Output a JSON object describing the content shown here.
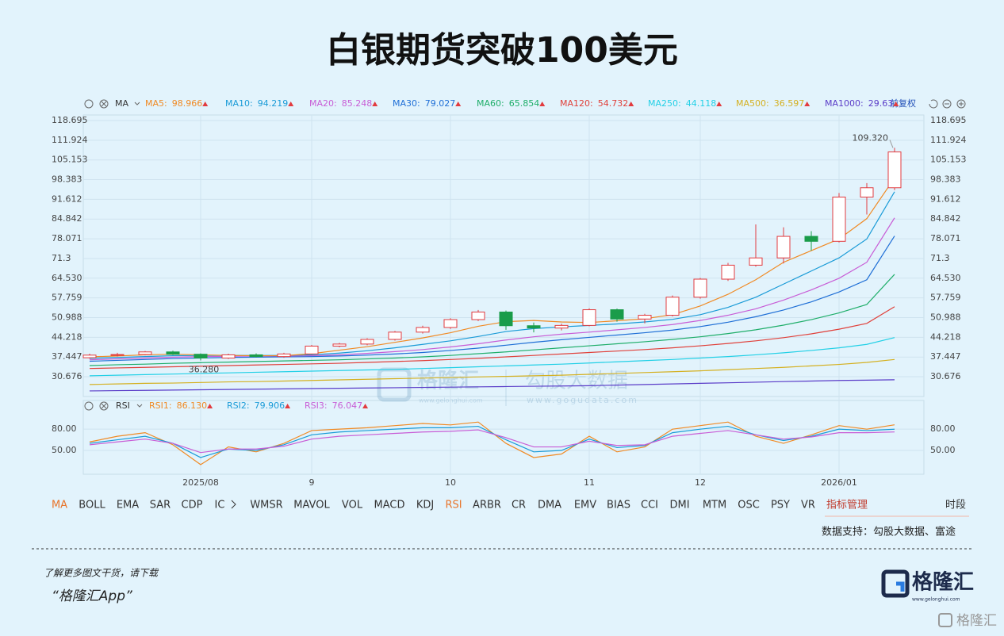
{
  "title": "白银期货突破100美元",
  "chart_data": [
    {
      "type": "candlestick",
      "indicator": "MA",
      "adjust": "前复权",
      "candles": [
        [
          37.2,
          38.6,
          36.9,
          38.1
        ],
        [
          38.1,
          38.9,
          37.6,
          38.3
        ],
        [
          38.3,
          39.5,
          38.0,
          39.2
        ],
        [
          39.2,
          39.6,
          38.1,
          38.4
        ],
        [
          38.4,
          38.7,
          36.28,
          37.1
        ],
        [
          37.1,
          38.6,
          36.8,
          38.2
        ],
        [
          38.2,
          38.7,
          37.3,
          37.6
        ],
        [
          37.6,
          38.9,
          37.2,
          38.5
        ],
        [
          38.5,
          41.6,
          38.3,
          41.2
        ],
        [
          41.2,
          42.3,
          40.8,
          41.9
        ],
        [
          41.9,
          43.9,
          41.5,
          43.5
        ],
        [
          43.5,
          46.4,
          43.1,
          46.0
        ],
        [
          46.0,
          48.2,
          45.5,
          47.6
        ],
        [
          47.6,
          50.8,
          47.1,
          50.3
        ],
        [
          50.3,
          53.6,
          49.8,
          52.9
        ],
        [
          52.9,
          53.4,
          46.8,
          48.2
        ],
        [
          48.2,
          49.3,
          45.9,
          47.4
        ],
        [
          47.4,
          48.9,
          46.6,
          48.3
        ],
        [
          48.3,
          54.2,
          48.0,
          53.7
        ],
        [
          53.7,
          54.1,
          49.6,
          50.5
        ],
        [
          50.5,
          52.3,
          49.0,
          51.8
        ],
        [
          51.8,
          58.6,
          51.4,
          58.0
        ],
        [
          58.0,
          64.6,
          57.5,
          64.2
        ],
        [
          64.2,
          69.8,
          63.6,
          69.0
        ],
        [
          69.0,
          83.0,
          68.5,
          71.5
        ],
        [
          71.5,
          82.0,
          69.6,
          78.9
        ],
        [
          78.9,
          80.7,
          74.0,
          77.2
        ],
        [
          77.2,
          93.8,
          76.8,
          92.4
        ],
        [
          92.4,
          97.2,
          86.4,
          95.6
        ],
        [
          95.6,
          109.32,
          94.8,
          107.9
        ]
      ],
      "up_color": "#e23b3f",
      "down_color": "#1a9c4a",
      "series": [
        {
          "name": "MA5:",
          "color": "#f08a24",
          "values": [
            37.5,
            37.8,
            38.2,
            38.4,
            38.2,
            38.0,
            37.9,
            37.9,
            38.6,
            39.8,
            41.0,
            42.5,
            44.0,
            45.8,
            48.0,
            49.6,
            50.0,
            49.5,
            49.3,
            49.9,
            50.6,
            52.0,
            55.0,
            59.0,
            64.0,
            70.0,
            74.0,
            78.0,
            85.0,
            98.966
          ]
        },
        {
          "name": "MA10:",
          "color": "#1a9bd7",
          "values": [
            37.0,
            37.3,
            37.6,
            37.9,
            38.0,
            38.0,
            38.0,
            38.0,
            38.2,
            38.8,
            39.6,
            40.6,
            41.8,
            43.0,
            44.5,
            46.2,
            47.2,
            47.8,
            48.3,
            48.8,
            49.5,
            50.4,
            52.0,
            54.5,
            58.0,
            62.5,
            67.0,
            71.5,
            78.0,
            94.219
          ]
        },
        {
          "name": "MA20:",
          "color": "#c85dd6",
          "values": [
            36.5,
            36.8,
            37.1,
            37.4,
            37.6,
            37.7,
            37.8,
            37.8,
            37.9,
            38.2,
            38.7,
            39.3,
            40.0,
            40.9,
            42.0,
            43.3,
            44.4,
            45.3,
            46.0,
            46.8,
            47.6,
            48.6,
            50.0,
            51.8,
            54.0,
            57.0,
            60.5,
            64.5,
            70.0,
            85.248
          ]
        },
        {
          "name": "MA30:",
          "color": "#1f6fd6",
          "values": [
            36.0,
            36.3,
            36.6,
            36.9,
            37.1,
            37.3,
            37.4,
            37.5,
            37.6,
            37.8,
            38.1,
            38.5,
            39.0,
            39.7,
            40.5,
            41.5,
            42.5,
            43.4,
            44.2,
            45.0,
            45.8,
            46.7,
            47.9,
            49.4,
            51.3,
            53.6,
            56.4,
            59.8,
            64.0,
            79.027
          ]
        },
        {
          "name": "MA60:",
          "color": "#1fae6a",
          "values": [
            34.5,
            34.8,
            35.0,
            35.3,
            35.5,
            35.7,
            35.9,
            36.1,
            36.3,
            36.5,
            36.8,
            37.1,
            37.5,
            38.0,
            38.6,
            39.2,
            39.9,
            40.6,
            41.3,
            42.0,
            42.7,
            43.5,
            44.4,
            45.5,
            46.8,
            48.4,
            50.3,
            52.6,
            55.5,
            65.854
          ]
        },
        {
          "name": "MA120:",
          "color": "#e0403a",
          "values": [
            33.5,
            33.7,
            33.9,
            34.1,
            34.3,
            34.5,
            34.7,
            34.9,
            35.1,
            35.3,
            35.6,
            35.9,
            36.2,
            36.6,
            37.0,
            37.5,
            38.0,
            38.5,
            39.0,
            39.5,
            40.0,
            40.6,
            41.3,
            42.1,
            43.0,
            44.1,
            45.4,
            47.0,
            49.0,
            54.732
          ]
        },
        {
          "name": "MA250:",
          "color": "#22d0e6",
          "values": [
            31.0,
            31.2,
            31.4,
            31.6,
            31.8,
            32.0,
            32.2,
            32.4,
            32.6,
            32.8,
            33.0,
            33.2,
            33.5,
            33.8,
            34.1,
            34.4,
            34.7,
            35.0,
            35.4,
            35.8,
            36.2,
            36.6,
            37.1,
            37.6,
            38.2,
            38.9,
            39.7,
            40.6,
            41.8,
            44.118
          ]
        },
        {
          "name": "MA500:",
          "color": "#d4b020",
          "values": [
            28.0,
            28.2,
            28.4,
            28.5,
            28.7,
            28.9,
            29.0,
            29.2,
            29.4,
            29.6,
            29.8,
            30.0,
            30.2,
            30.4,
            30.6,
            30.8,
            31.0,
            31.2,
            31.5,
            31.8,
            32.1,
            32.4,
            32.7,
            33.1,
            33.5,
            33.9,
            34.4,
            34.9,
            35.6,
            36.597
          ]
        },
        {
          "name": "MA1000:",
          "color": "#5a3cc8",
          "values": [
            25.8,
            25.9,
            26.0,
            26.1,
            26.2,
            26.3,
            26.4,
            26.5,
            26.6,
            26.7,
            26.8,
            26.9,
            27.0,
            27.1,
            27.2,
            27.3,
            27.4,
            27.5,
            27.6,
            27.8,
            28.0,
            28.2,
            28.4,
            28.6,
            28.8,
            29.0,
            29.2,
            29.4,
            29.5,
            29.63
          ]
        }
      ],
      "ylim": [
        23.88,
        120.6
      ],
      "yticks": [
        118.695,
        111.924,
        105.153,
        98.383,
        91.612,
        84.842,
        78.071,
        71.3,
        {
          "value": 64.53,
          "label": "64.530"
        },
        57.759,
        50.988,
        44.218,
        37.447,
        30.676
      ],
      "grid": true,
      "high_label": {
        "value": 109.32,
        "label": "109.320"
      },
      "low_label": {
        "value": 36.28,
        "label": "36.280"
      }
    },
    {
      "type": "line",
      "indicator": "RSI",
      "categories": [
        null,
        null,
        null,
        null,
        "2025/08",
        null,
        null,
        null,
        "9",
        null,
        null,
        null,
        null,
        "10",
        null,
        null,
        null,
        null,
        "11",
        null,
        null,
        null,
        "12",
        null,
        null,
        null,
        null,
        "2026/01",
        null,
        null
      ],
      "series": [
        {
          "name": "RSI1:",
          "color": "#f08a24",
          "legend_value": "86.130",
          "values": [
            62,
            70,
            75,
            58,
            30,
            55,
            48,
            60,
            78,
            80,
            82,
            85,
            88,
            86,
            90,
            60,
            40,
            45,
            70,
            48,
            55,
            80,
            85,
            90,
            70,
            60,
            72,
            85,
            80,
            86.13
          ]
        },
        {
          "name": "RSI2:",
          "color": "#1a9bd7",
          "values": [
            60,
            65,
            70,
            60,
            40,
            52,
            50,
            58,
            72,
            76,
            78,
            80,
            82,
            82,
            84,
            65,
            48,
            50,
            66,
            54,
            57,
            75,
            80,
            84,
            72,
            64,
            70,
            80,
            78,
            79.906
          ]
        },
        {
          "name": "RSI3:",
          "color": "#c85dd6",
          "values": [
            58,
            62,
            66,
            60,
            47,
            52,
            52,
            56,
            66,
            70,
            72,
            74,
            76,
            77,
            79,
            68,
            55,
            55,
            63,
            57,
            58,
            70,
            74,
            78,
            72,
            66,
            69,
            75,
            75,
            76.047
          ]
        }
      ],
      "ylim": [
        16.5,
        120.4
      ],
      "yticks": [
        {
          "value": 80,
          "label": "80.00"
        },
        {
          "value": 50,
          "label": "50.00"
        }
      ],
      "grid": true
    }
  ],
  "tabs": [
    "MA",
    "BOLL",
    "EMA",
    "SAR",
    "CDP",
    "IC",
    "WMSR",
    "MAVOL",
    "VOL",
    "MACD",
    "KDJ",
    "RSI",
    "ARBR",
    "CR",
    "DMA",
    "EMV",
    "BIAS",
    "CCI",
    "DMI",
    "MTM",
    "OSC",
    "PSY",
    "VR",
    "指标管理"
  ],
  "period_tab": "时段",
  "source": "数据支持：勾股大数据、富途",
  "watermark": {
    "brand": "格隆汇",
    "brand_url": "www.gelonghui.com",
    "partner": "勾股大数据",
    "partner_url": "www.gogudata.com"
  },
  "footer": {
    "line1": "了解更多图文干货，请下载",
    "line2": "“格隆汇App”",
    "logo": "格隆汇",
    "logo_url": "www.gelonghui.com",
    "corner": "格隆汇"
  }
}
